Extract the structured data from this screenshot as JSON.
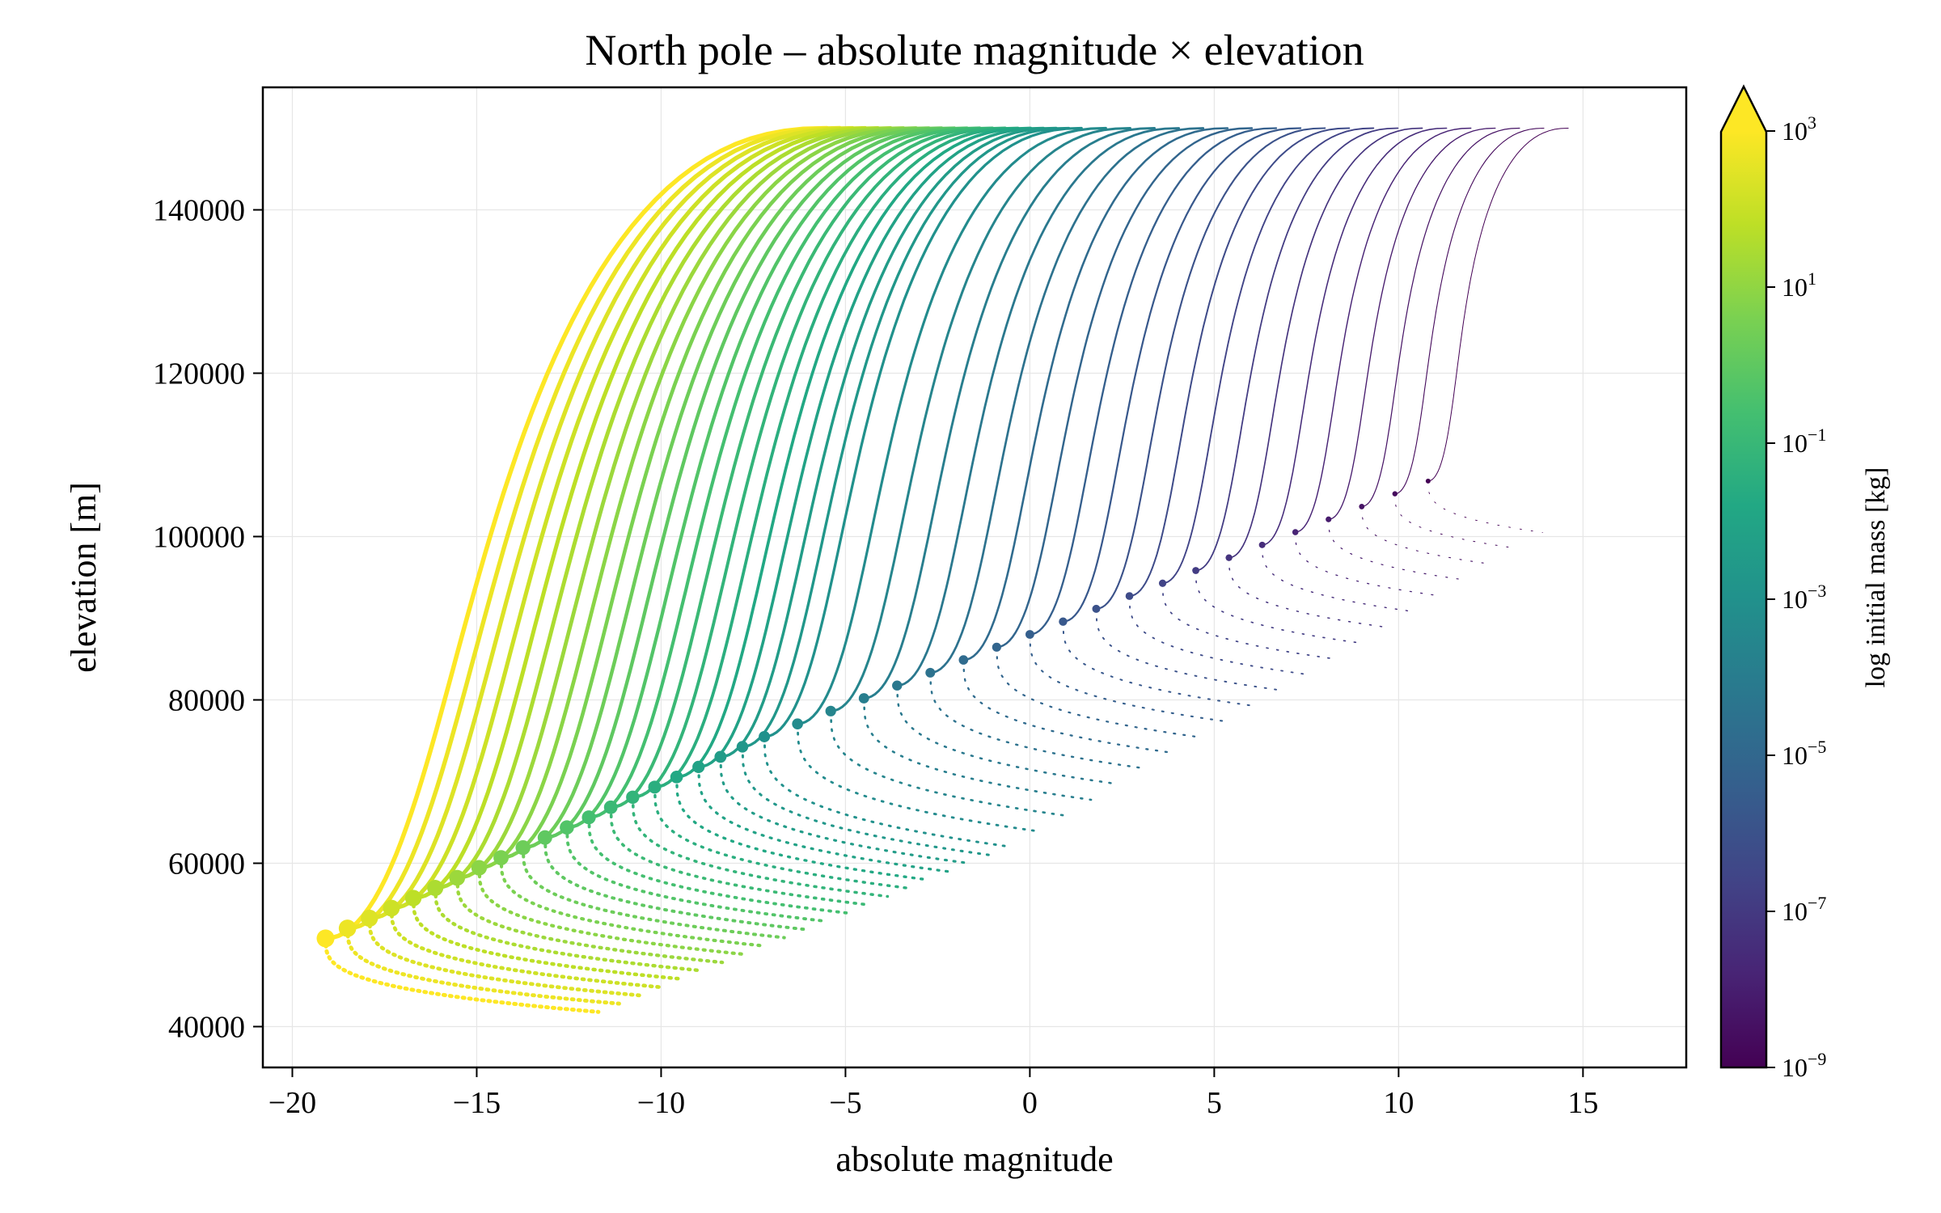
{
  "chart_data": {
    "type": "line",
    "title": "North pole – absolute magnitude × elevation",
    "xlabel": "absolute magnitude",
    "ylabel": "elevation [m]",
    "xlim": [
      -20.8,
      17.8
    ],
    "ylim": [
      35000,
      155000
    ],
    "xticks": [
      -20,
      -15,
      -10,
      -5,
      0,
      5,
      10,
      15
    ],
    "xtick_labels": [
      "−20",
      "−15",
      "−10",
      "−5",
      "0",
      "5",
      "10",
      "15"
    ],
    "yticks": [
      40000,
      60000,
      80000,
      100000,
      120000,
      140000
    ],
    "ytick_labels": [
      "40000",
      "60000",
      "80000",
      "100000",
      "120000",
      "140000"
    ],
    "grid": true,
    "colormap": "viridis",
    "colorbar": {
      "label": "log initial mass [kg]",
      "scale": "log",
      "extend": "max",
      "range_exponents": [
        -9,
        3
      ],
      "ticks": [
        {
          "base": "10",
          "exp": "3",
          "value_exp": 3
        },
        {
          "base": "10",
          "exp": "1",
          "value_exp": 1
        },
        {
          "base": "10",
          "exp": "−1",
          "value_exp": -1
        },
        {
          "base": "10",
          "exp": "−3",
          "value_exp": -3
        },
        {
          "base": "10",
          "exp": "−5",
          "value_exp": -5
        },
        {
          "base": "10",
          "exp": "−7",
          "value_exp": -7
        },
        {
          "base": "10",
          "exp": "−9",
          "value_exp": -9
        }
      ]
    },
    "series_summary": {
      "count": 41,
      "initial_mass_kg_range": [
        "1e-9",
        "1e3"
      ],
      "start_elevation_m": 150000,
      "start_magnitude_range": [
        -5.5,
        14.6
      ],
      "peak_magnitude_range": [
        -19.1,
        10.8
      ],
      "peak_elevation_range_m": [
        50800,
        106800
      ],
      "end_elevation_range_m": [
        41800,
        100500
      ],
      "end_magnitude_range": [
        -11.7,
        13.9
      ]
    },
    "series_anchors": [
      {
        "mass_exp": 3.0,
        "start_mag": -5.5,
        "peak_mag": -19.1,
        "peak_elev": 50800,
        "end_mag": -11.7,
        "end_elev": 41800
      },
      {
        "mass_exp": -1.2,
        "start_mag": 1.4,
        "peak_mag": -7.2,
        "peak_elev": 75500,
        "end_mag": -0.5,
        "end_elev": 62000
      },
      {
        "mass_exp": -9.0,
        "start_mag": 14.6,
        "peak_mag": 10.8,
        "peak_elev": 106800,
        "end_mag": 13.9,
        "end_elev": 100500
      }
    ]
  }
}
